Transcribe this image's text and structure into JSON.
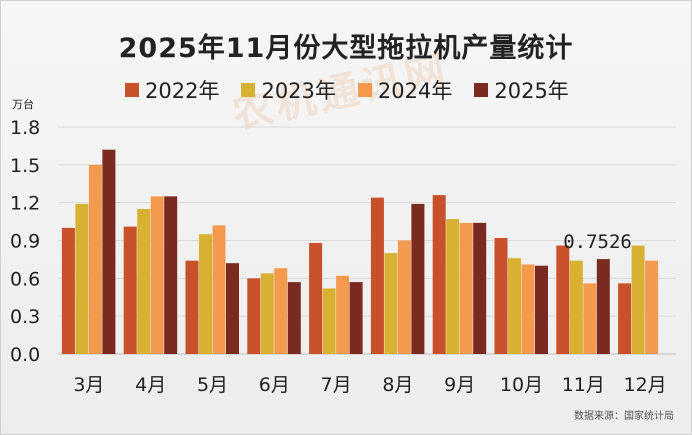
{
  "colors": {
    "s2022": "#c8502a",
    "s2023": "#d8b132",
    "s2024": "#f39a4f",
    "s2025": "#7a2a1e"
  },
  "watermark_text": "农机通讯网",
  "chart_data": {
    "type": "bar",
    "title": "2025年11月份大型拖拉机产量统计",
    "unit_label": "万台",
    "source": "数据来源：国家统计局",
    "categories": [
      "3月",
      "4月",
      "5月",
      "6月",
      "7月",
      "8月",
      "9月",
      "10月",
      "11月",
      "12月"
    ],
    "ylim": [
      0,
      1.8
    ],
    "yticks": [
      "0.0",
      "0.3",
      "0.6",
      "0.9",
      "1.2",
      "1.5",
      "1.8"
    ],
    "grid": true,
    "legend": "top",
    "series": [
      {
        "name": "2022年",
        "values": [
          1.0,
          1.01,
          0.74,
          0.6,
          0.88,
          1.24,
          1.26,
          0.92,
          0.86,
          0.56
        ]
      },
      {
        "name": "2023年",
        "values": [
          1.19,
          1.15,
          0.95,
          0.64,
          0.52,
          0.8,
          1.07,
          0.76,
          0.74,
          0.86
        ]
      },
      {
        "name": "2024年",
        "values": [
          1.5,
          1.25,
          1.02,
          0.68,
          0.62,
          0.9,
          1.04,
          0.71,
          0.56,
          0.74
        ]
      },
      {
        "name": "2025年",
        "values": [
          1.62,
          1.25,
          0.72,
          0.57,
          0.57,
          1.19,
          1.04,
          0.7,
          0.7526,
          null
        ]
      }
    ],
    "annotations": [
      {
        "text": "0.7526",
        "category": "11月",
        "series": "2025年",
        "value": 0.7526
      }
    ]
  }
}
